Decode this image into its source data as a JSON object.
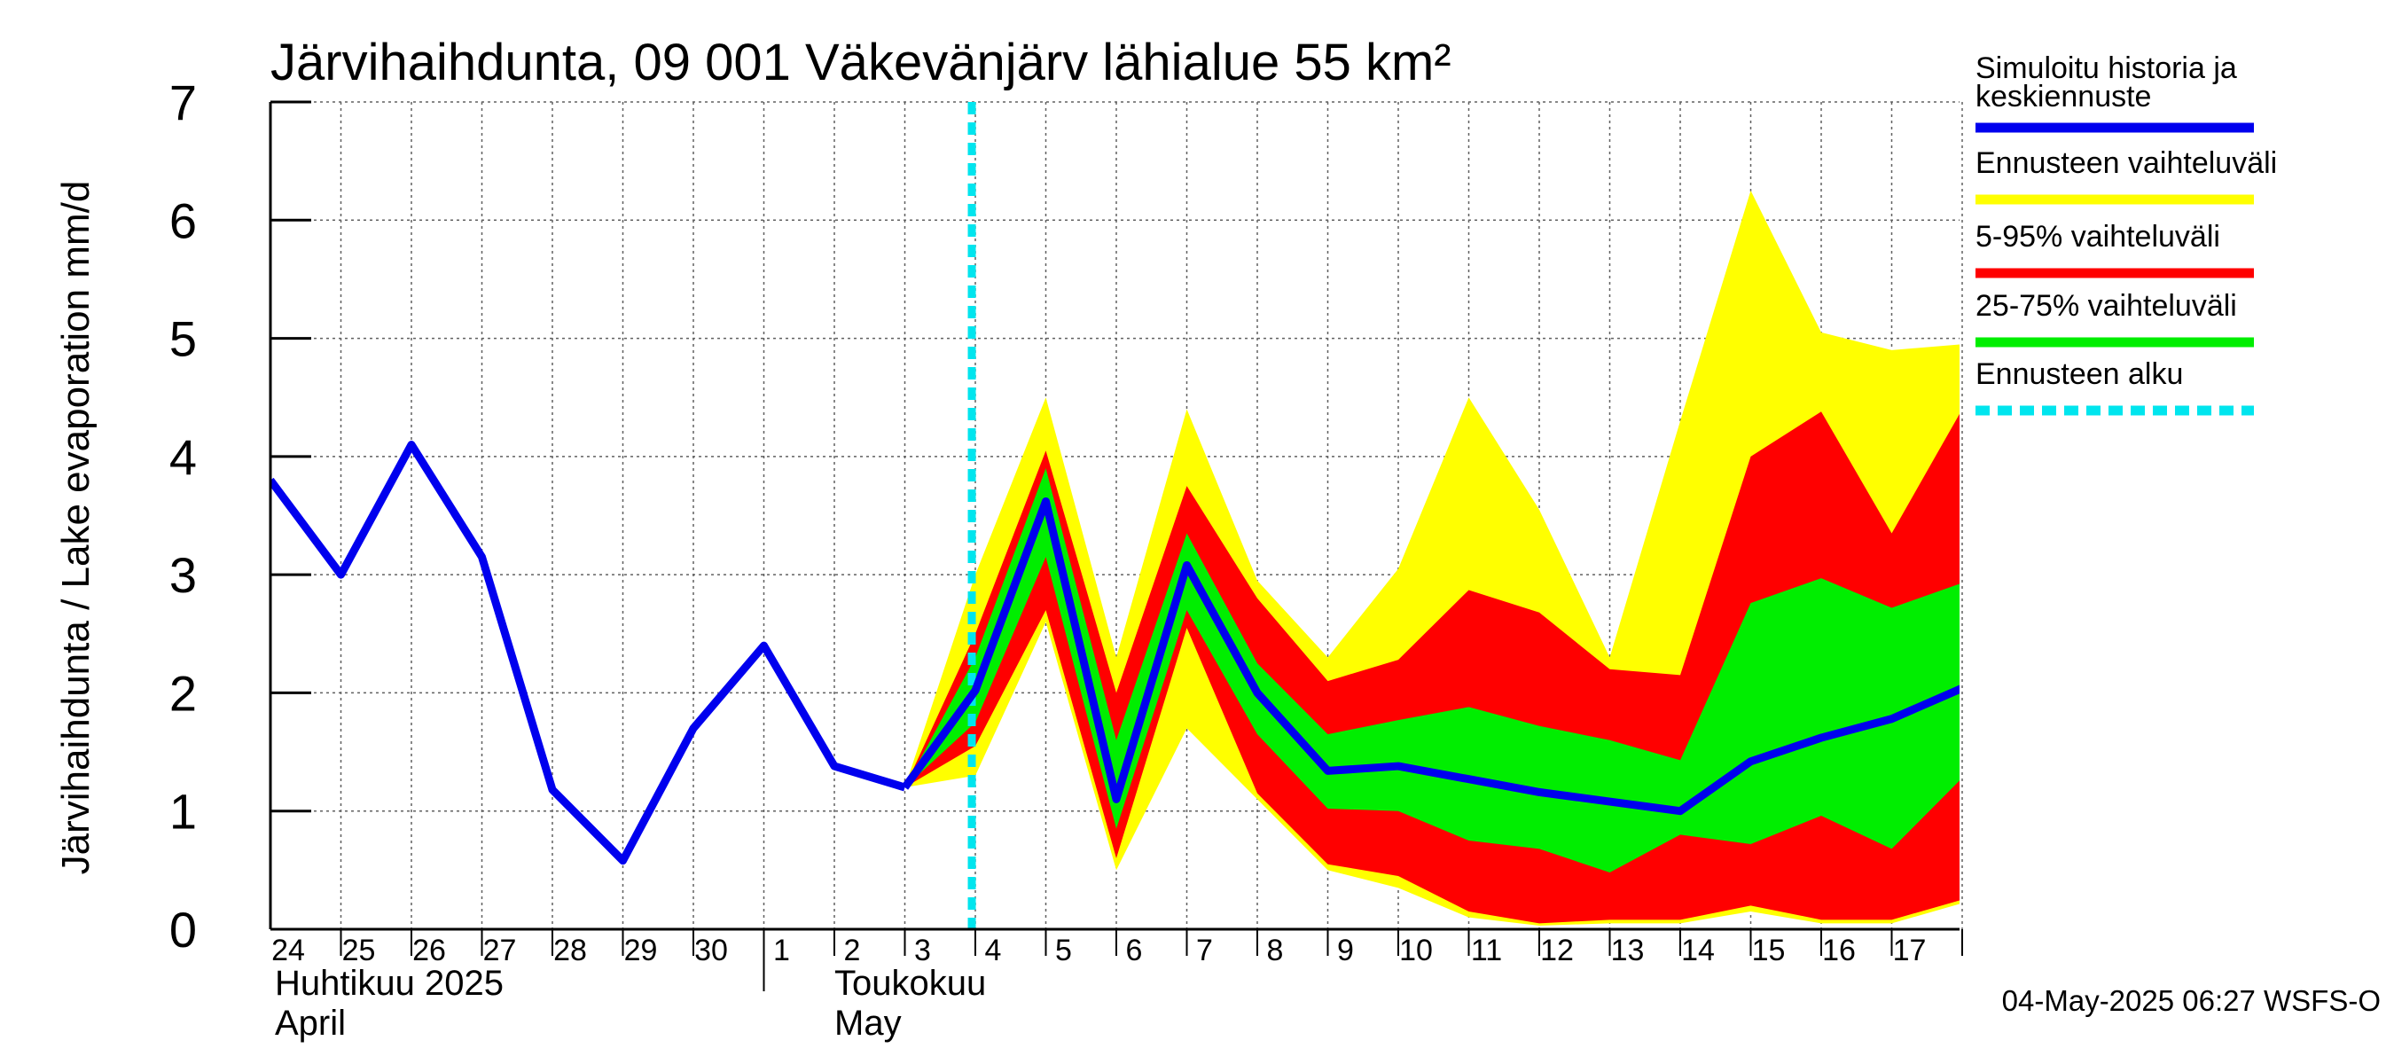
{
  "chart_data": {
    "type": "area",
    "title": "Järvihaihdunta, 09 001 Väkevänjärv lähialue 55 km²",
    "ylabel": "Järvihaihdunta / Lake evaporation   mm/d",
    "ylim": [
      0,
      7
    ],
    "yticks": [
      "0",
      "1",
      "2",
      "3",
      "4",
      "5",
      "6",
      "7"
    ],
    "grid": true,
    "legend_placement": "right",
    "x_ticks": [
      "24",
      "25",
      "26",
      "27",
      "28",
      "29",
      "30",
      "1",
      "2",
      "3",
      "4",
      "5",
      "6",
      "7",
      "8",
      "9",
      "10",
      "11",
      "12",
      "13",
      "14",
      "15",
      "16",
      "17"
    ],
    "month_labels": [
      {
        "line1": "Huhtikuu  2025",
        "line2": "April"
      },
      {
        "line1": "Toukokuu",
        "line2": "May"
      }
    ],
    "forecast_start_day": "4",
    "forecast_start_offset": 0.95,
    "history": {
      "name": "Simuloitu historia ja keskiennuste",
      "days": [
        "24",
        "25",
        "26",
        "27",
        "28",
        "29",
        "30",
        "1",
        "2",
        "3"
      ],
      "values": [
        3.8,
        3.0,
        4.1,
        3.15,
        1.18,
        0.58,
        1.7,
        2.4,
        1.38,
        1.2
      ]
    },
    "forecast": {
      "days": [
        "3",
        "4",
        "5",
        "6",
        "7",
        "8",
        "9",
        "10",
        "11",
        "12",
        "13",
        "14",
        "15",
        "16",
        "17",
        "18"
      ],
      "median": [
        1.2,
        2.02,
        3.62,
        1.1,
        3.08,
        2.0,
        1.34,
        1.38,
        1.27,
        1.16,
        1.08,
        1.0,
        1.42,
        1.62,
        1.78,
        2.04
      ],
      "range_low": [
        1.2,
        1.3,
        2.6,
        0.5,
        1.7,
        1.1,
        0.5,
        0.35,
        0.1,
        0.03,
        0.05,
        0.05,
        0.15,
        0.05,
        0.05,
        0.22
      ],
      "range_high": [
        1.2,
        3.0,
        4.5,
        2.3,
        4.4,
        2.95,
        2.3,
        3.05,
        4.5,
        3.55,
        2.3,
        4.3,
        6.25,
        5.05,
        4.9,
        4.95
      ],
      "p5": [
        1.2,
        1.55,
        2.7,
        0.6,
        2.55,
        1.15,
        0.55,
        0.45,
        0.15,
        0.05,
        0.08,
        0.08,
        0.2,
        0.08,
        0.08,
        0.25
      ],
      "p95": [
        1.2,
        2.5,
        4.05,
        2.0,
        3.75,
        2.8,
        2.1,
        2.28,
        2.87,
        2.68,
        2.2,
        2.15,
        4.0,
        4.38,
        3.35,
        4.4
      ],
      "p25": [
        1.2,
        1.75,
        3.15,
        0.85,
        2.7,
        1.65,
        1.02,
        1.0,
        0.75,
        0.68,
        0.48,
        0.8,
        0.72,
        0.96,
        0.68,
        1.28
      ],
      "p75": [
        1.2,
        2.3,
        3.9,
        1.6,
        3.35,
        2.25,
        1.65,
        1.77,
        1.88,
        1.72,
        1.6,
        1.43,
        2.76,
        2.97,
        2.72,
        2.93
      ]
    },
    "colors": {
      "median": "#0000ee",
      "range": "#ffff00",
      "p5_95": "#ff0000",
      "p25_75": "#00ee00",
      "forecast_start": "#00e5ee",
      "grid": "#606060",
      "axis": "#000000"
    },
    "legend": [
      {
        "label_line1": "Simuloitu historia ja",
        "label_line2": "keskiennuste",
        "color": "#0000ee",
        "style": "solid"
      },
      {
        "label_line1": "Ennusteen vaihteluväli",
        "label_line2": "",
        "color": "#ffff00",
        "style": "solid"
      },
      {
        "label_line1": "5-95% vaihteluväli",
        "label_line2": "",
        "color": "#ff0000",
        "style": "solid"
      },
      {
        "label_line1": "25-75% vaihteluväli",
        "label_line2": "",
        "color": "#00ee00",
        "style": "solid"
      },
      {
        "label_line1": "Ennusteen alku",
        "label_line2": "",
        "color": "#00e5ee",
        "style": "dashed"
      }
    ]
  },
  "footer": {
    "timestamp": "04-May-2025 06:27 WSFS-O"
  }
}
